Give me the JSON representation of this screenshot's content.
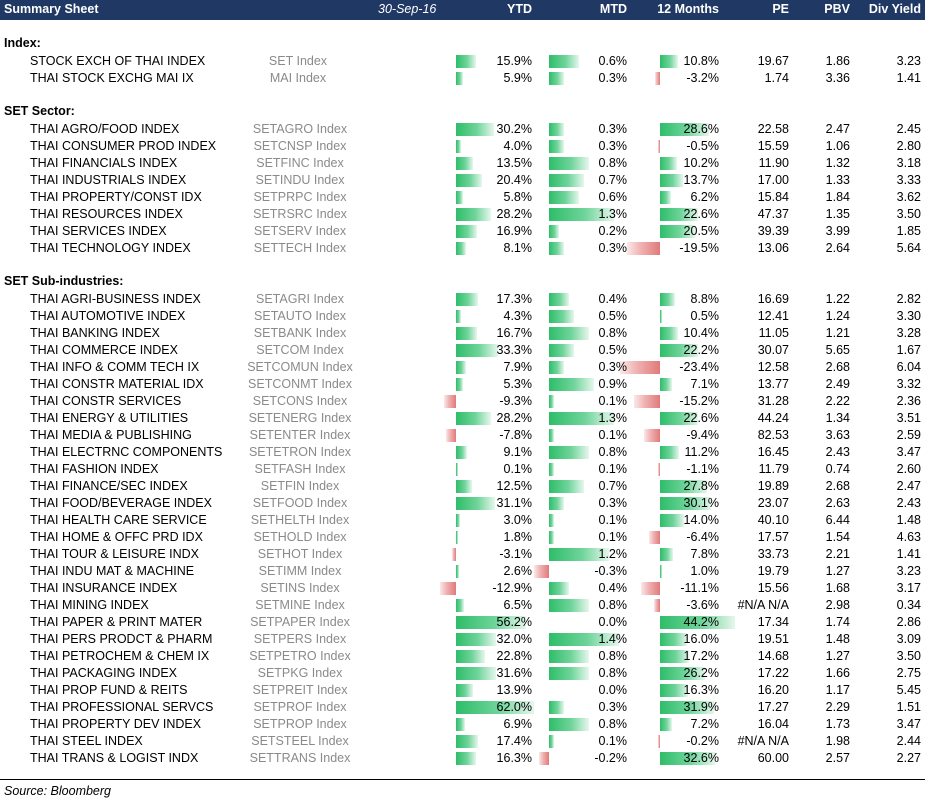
{
  "header": {
    "title": "Summary Sheet",
    "date": "30-Sep-16",
    "columns": {
      "ytd": "YTD",
      "mtd": "MTD",
      "m12": "12 Months",
      "pe": "PE",
      "pbv": "PBV",
      "dy": "Div Yield"
    }
  },
  "sections": [
    {
      "label": "Index:",
      "rows": [
        {
          "name": "STOCK EXCH OF THAI INDEX",
          "ticker": "SET Index",
          "ytd": "15.9%",
          "mtd": "0.6%",
          "m12": "10.8%",
          "pe": "19.67",
          "pbv": "1.86",
          "dy": "3.23"
        },
        {
          "name": "THAI STOCK EXCHG MAI IX",
          "ticker": "MAI Index",
          "ytd": "5.9%",
          "mtd": "0.3%",
          "m12": "-3.2%",
          "pe": "1.74",
          "pbv": "3.36",
          "dy": "1.41"
        }
      ]
    },
    {
      "label": "SET Sector:",
      "rows": [
        {
          "name": "THAI AGRO/FOOD INDEX",
          "ticker": "SETAGRO Index",
          "ytd": "30.2%",
          "mtd": "0.3%",
          "m12": "28.6%",
          "pe": "22.58",
          "pbv": "2.47",
          "dy": "2.45"
        },
        {
          "name": "THAI CONSUMER PROD INDEX",
          "ticker": "SETCNSP Index",
          "ytd": "4.0%",
          "mtd": "0.3%",
          "m12": "-0.5%",
          "pe": "15.59",
          "pbv": "1.06",
          "dy": "2.80"
        },
        {
          "name": "THAI FINANCIALS INDEX",
          "ticker": "SETFINC Index",
          "ytd": "13.5%",
          "mtd": "0.8%",
          "m12": "10.2%",
          "pe": "11.90",
          "pbv": "1.32",
          "dy": "3.18"
        },
        {
          "name": "THAI INDUSTRIALS INDEX",
          "ticker": "SETINDU Index",
          "ytd": "20.4%",
          "mtd": "0.7%",
          "m12": "13.7%",
          "pe": "17.00",
          "pbv": "1.33",
          "dy": "3.33"
        },
        {
          "name": "THAI PROPERTY/CONST IDX",
          "ticker": "SETPRPC Index",
          "ytd": "5.8%",
          "mtd": "0.6%",
          "m12": "6.2%",
          "pe": "15.84",
          "pbv": "1.84",
          "dy": "3.62"
        },
        {
          "name": "THAI RESOURCES INDEX",
          "ticker": "SETRSRC Index",
          "ytd": "28.2%",
          "mtd": "1.3%",
          "m12": "22.6%",
          "pe": "47.37",
          "pbv": "1.35",
          "dy": "3.50"
        },
        {
          "name": "THAI SERVICES INDEX",
          "ticker": "SETSERV Index",
          "ytd": "16.9%",
          "mtd": "0.2%",
          "m12": "20.5%",
          "pe": "39.39",
          "pbv": "3.99",
          "dy": "1.85"
        },
        {
          "name": "THAI TECHNOLOGY INDEX",
          "ticker": "SETTECH Index",
          "ytd": "8.1%",
          "mtd": "0.3%",
          "m12": "-19.5%",
          "pe": "13.06",
          "pbv": "2.64",
          "dy": "5.64"
        }
      ]
    },
    {
      "label": "SET Sub-industries:",
      "rows": [
        {
          "name": "THAI AGRI-BUSINESS INDEX",
          "ticker": "SETAGRI Index",
          "ytd": "17.3%",
          "mtd": "0.4%",
          "m12": "8.8%",
          "pe": "16.69",
          "pbv": "1.22",
          "dy": "2.82"
        },
        {
          "name": "THAI AUTOMOTIVE INDEX",
          "ticker": "SETAUTO Index",
          "ytd": "4.3%",
          "mtd": "0.5%",
          "m12": "0.5%",
          "pe": "12.41",
          "pbv": "1.24",
          "dy": "3.30"
        },
        {
          "name": "THAI BANKING INDEX",
          "ticker": "SETBANK Index",
          "ytd": "16.7%",
          "mtd": "0.8%",
          "m12": "10.4%",
          "pe": "11.05",
          "pbv": "1.21",
          "dy": "3.28"
        },
        {
          "name": "THAI COMMERCE INDEX",
          "ticker": "SETCOM Index",
          "ytd": "33.3%",
          "mtd": "0.5%",
          "m12": "22.2%",
          "pe": "30.07",
          "pbv": "5.65",
          "dy": "1.67"
        },
        {
          "name": "THAI INFO & COMM TECH IX",
          "ticker": "SETCOMUN Index",
          "ytd": "7.9%",
          "mtd": "0.3%",
          "m12": "-23.4%",
          "pe": "12.58",
          "pbv": "2.68",
          "dy": "6.04"
        },
        {
          "name": "THAI CONSTR MATERIAL IDX",
          "ticker": "SETCONMT Index",
          "ytd": "5.3%",
          "mtd": "0.9%",
          "m12": "7.1%",
          "pe": "13.77",
          "pbv": "2.49",
          "dy": "3.32"
        },
        {
          "name": "THAI CONSTR SERVICES",
          "ticker": "SETCONS Index",
          "ytd": "-9.3%",
          "mtd": "0.1%",
          "m12": "-15.2%",
          "pe": "31.28",
          "pbv": "2.22",
          "dy": "2.36"
        },
        {
          "name": "THAI ENERGY & UTILITIES",
          "ticker": "SETENERG Index",
          "ytd": "28.2%",
          "mtd": "1.3%",
          "m12": "22.6%",
          "pe": "44.24",
          "pbv": "1.34",
          "dy": "3.51"
        },
        {
          "name": "THAI MEDIA & PUBLISHING",
          "ticker": "SETENTER Index",
          "ytd": "-7.8%",
          "mtd": "0.1%",
          "m12": "-9.4%",
          "pe": "82.53",
          "pbv": "3.63",
          "dy": "2.59"
        },
        {
          "name": "THAI ELECTRNC COMPONENTS",
          "ticker": "SETETRON Index",
          "ytd": "9.1%",
          "mtd": "0.8%",
          "m12": "11.2%",
          "pe": "16.45",
          "pbv": "2.43",
          "dy": "3.47"
        },
        {
          "name": "THAI FASHION INDEX",
          "ticker": "SETFASH Index",
          "ytd": "0.1%",
          "mtd": "0.1%",
          "m12": "-1.1%",
          "pe": "11.79",
          "pbv": "0.74",
          "dy": "2.60"
        },
        {
          "name": "THAI FINANCE/SEC INDEX",
          "ticker": "SETFIN Index",
          "ytd": "12.5%",
          "mtd": "0.7%",
          "m12": "27.8%",
          "pe": "19.89",
          "pbv": "2.68",
          "dy": "2.47"
        },
        {
          "name": "THAI FOOD/BEVERAGE INDEX",
          "ticker": "SETFOOD Index",
          "ytd": "31.1%",
          "mtd": "0.3%",
          "m12": "30.1%",
          "pe": "23.07",
          "pbv": "2.63",
          "dy": "2.43"
        },
        {
          "name": "THAI HEALTH CARE SERVICE",
          "ticker": "SETHELTH Index",
          "ytd": "3.0%",
          "mtd": "0.1%",
          "m12": "14.0%",
          "pe": "40.10",
          "pbv": "6.44",
          "dy": "1.48"
        },
        {
          "name": "THAI HOME & OFFC PRD IDX",
          "ticker": "SETHOLD Index",
          "ytd": "1.8%",
          "mtd": "0.1%",
          "m12": "-6.4%",
          "pe": "17.57",
          "pbv": "1.54",
          "dy": "4.63"
        },
        {
          "name": "THAI TOUR & LEISURE INDX",
          "ticker": "SETHOT Index",
          "ytd": "-3.1%",
          "mtd": "1.2%",
          "m12": "7.8%",
          "pe": "33.73",
          "pbv": "2.21",
          "dy": "1.41"
        },
        {
          "name": "THAI INDU MAT & MACHINE",
          "ticker": "SETIMM Index",
          "ytd": "2.6%",
          "mtd": "-0.3%",
          "m12": "1.0%",
          "pe": "19.79",
          "pbv": "1.27",
          "dy": "3.23"
        },
        {
          "name": "THAI INSURANCE INDEX",
          "ticker": "SETINS Index",
          "ytd": "-12.9%",
          "mtd": "0.4%",
          "m12": "-11.1%",
          "pe": "15.56",
          "pbv": "1.68",
          "dy": "3.17"
        },
        {
          "name": "THAI MINING INDEX",
          "ticker": "SETMINE Index",
          "ytd": "6.5%",
          "mtd": "0.8%",
          "m12": "-3.6%",
          "pe": "#N/A N/A",
          "pbv": "2.98",
          "dy": "0.34"
        },
        {
          "name": "THAI PAPER & PRINT MATER",
          "ticker": "SETPAPER Index",
          "ytd": "56.2%",
          "mtd": "0.0%",
          "m12": "44.2%",
          "pe": "17.34",
          "pbv": "1.74",
          "dy": "2.86"
        },
        {
          "name": "THAI PERS PRODCT & PHARM",
          "ticker": "SETPERS Index",
          "ytd": "32.0%",
          "mtd": "1.4%",
          "m12": "16.0%",
          "pe": "19.51",
          "pbv": "1.48",
          "dy": "3.09"
        },
        {
          "name": "THAI PETROCHEM & CHEM IX",
          "ticker": "SETPETRO Index",
          "ytd": "22.8%",
          "mtd": "0.8%",
          "m12": "17.2%",
          "pe": "14.68",
          "pbv": "1.27",
          "dy": "3.50"
        },
        {
          "name": "THAI PACKAGING INDEX",
          "ticker": "SETPKG Index",
          "ytd": "31.6%",
          "mtd": "0.8%",
          "m12": "26.2%",
          "pe": "17.22",
          "pbv": "1.66",
          "dy": "2.75"
        },
        {
          "name": "THAI PROP FUND & REITS",
          "ticker": "SETPREIT Index",
          "ytd": "13.9%",
          "mtd": "0.0%",
          "m12": "16.3%",
          "pe": "16.20",
          "pbv": "1.17",
          "dy": "5.45"
        },
        {
          "name": "THAI PROFESSIONAL SERVCS",
          "ticker": "SETPROF Index",
          "ytd": "62.0%",
          "mtd": "0.3%",
          "m12": "31.9%",
          "pe": "17.27",
          "pbv": "2.29",
          "dy": "1.51"
        },
        {
          "name": "THAI PROPERTY DEV INDEX",
          "ticker": "SETPROP Index",
          "ytd": "6.9%",
          "mtd": "0.8%",
          "m12": "7.2%",
          "pe": "16.04",
          "pbv": "1.73",
          "dy": "3.47"
        },
        {
          "name": "THAI STEEL INDEX",
          "ticker": "SETSTEEL Index",
          "ytd": "17.4%",
          "mtd": "0.1%",
          "m12": "-0.2%",
          "pe": "#N/A N/A",
          "pbv": "1.98",
          "dy": "2.44"
        },
        {
          "name": "THAI TRANS & LOGIST INDX",
          "ticker": "SETTRANS Index",
          "ytd": "16.3%",
          "mtd": "-0.2%",
          "m12": "32.6%",
          "pe": "60.00",
          "pbv": "2.57",
          "dy": "2.27"
        }
      ]
    }
  ],
  "source": "Source: Bloomberg",
  "colors": {
    "header_bg": "#1f3864",
    "positive_bar": "#2ebd69",
    "negative_bar": "#e07a7a"
  }
}
